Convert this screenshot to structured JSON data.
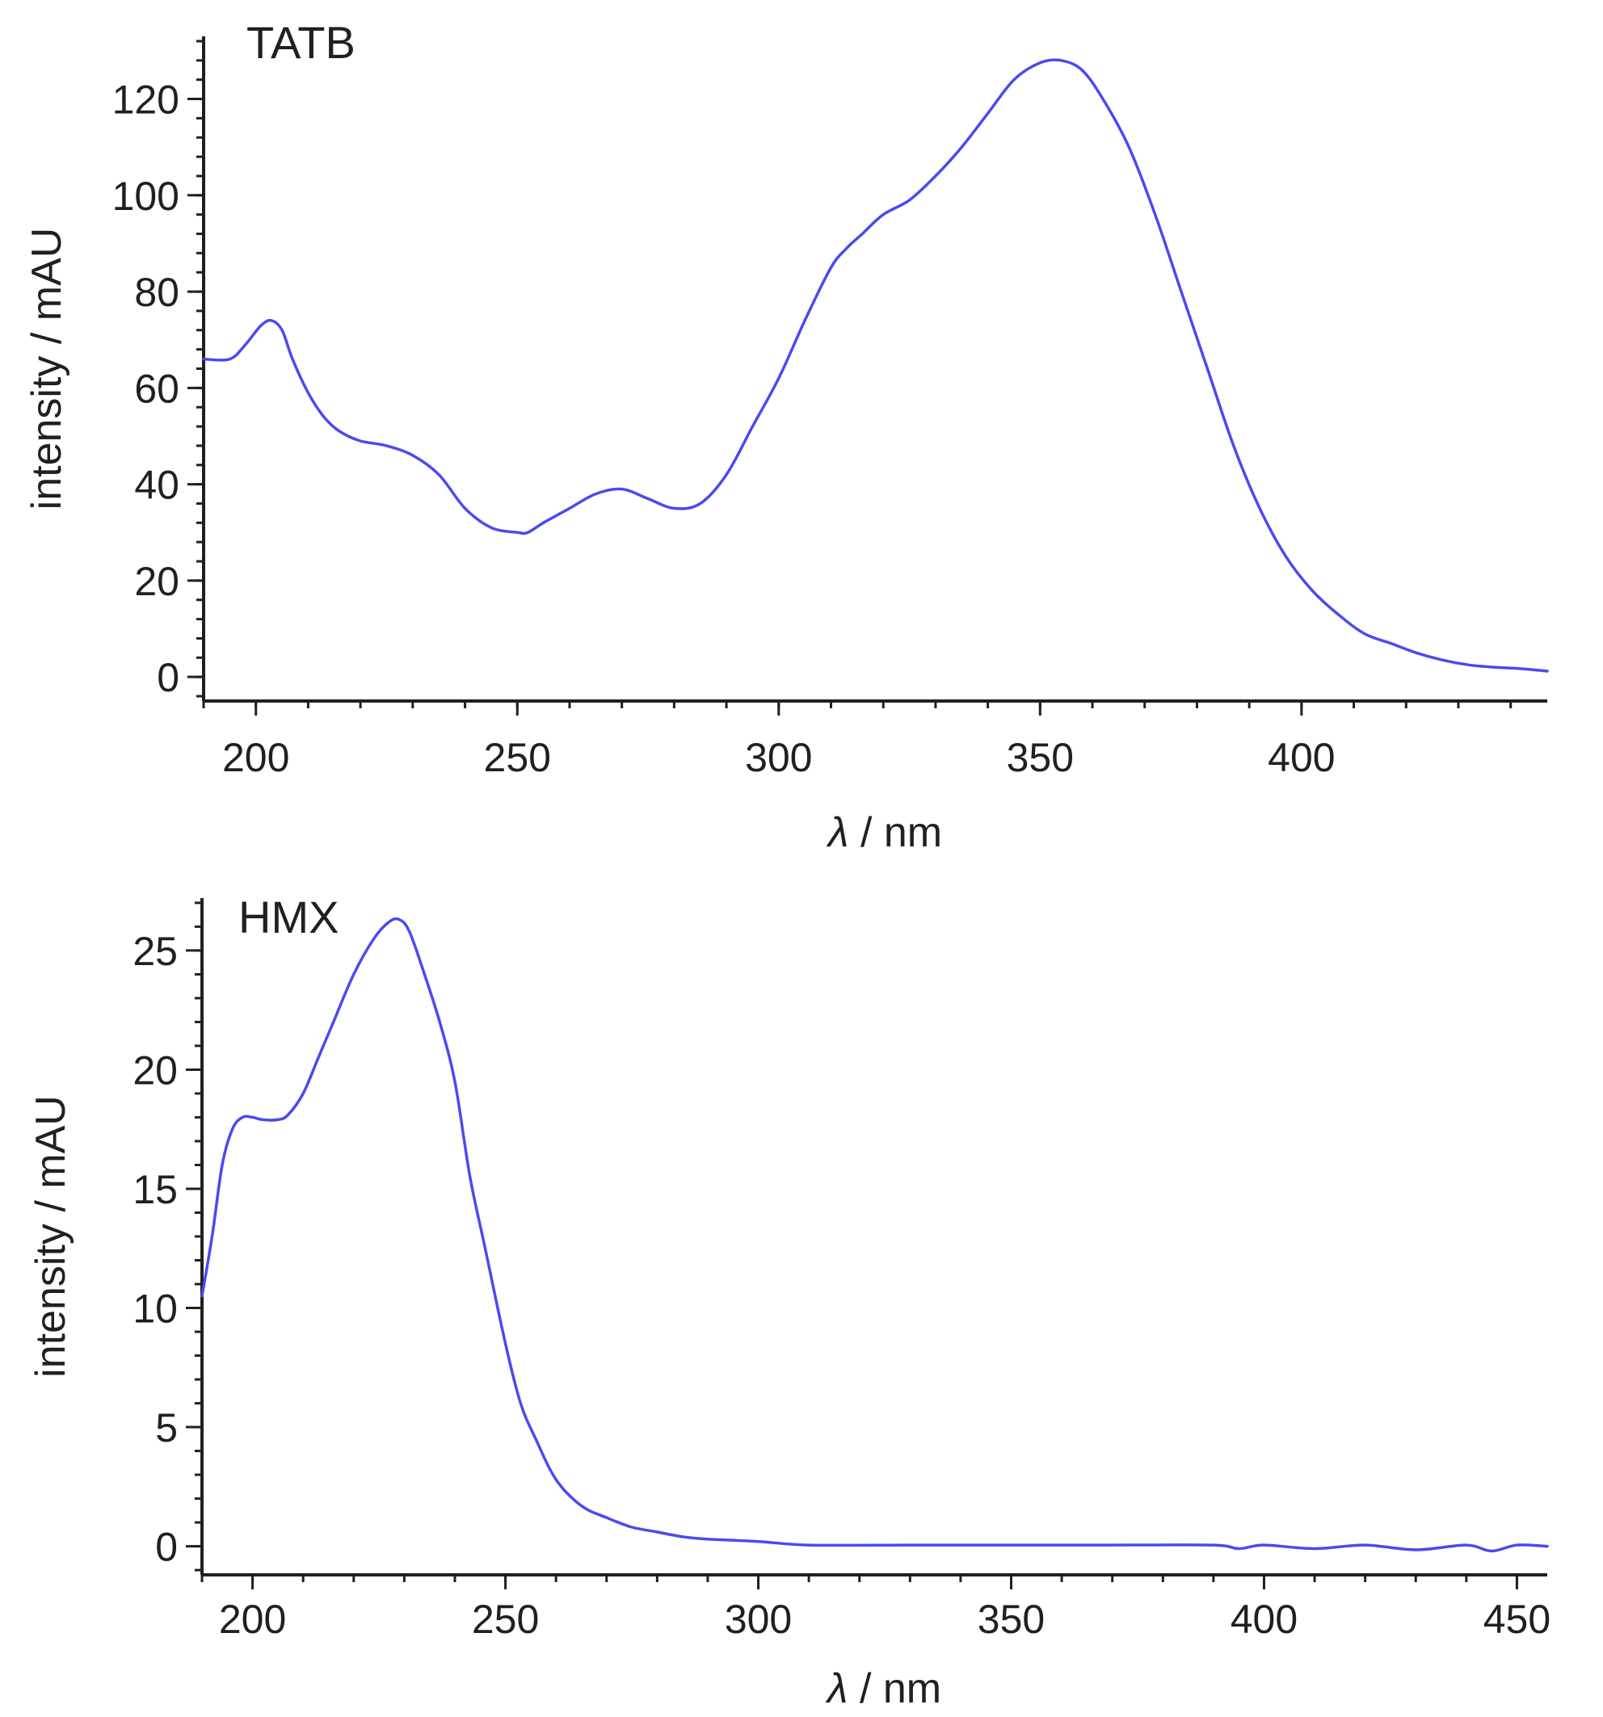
{
  "colors": {
    "series": "#4a4af0",
    "axis": "#231f20"
  },
  "chart_data": [
    {
      "type": "line",
      "title": "TATB",
      "xlabel_symbol": "λ",
      "xlabel_unit": " / nm",
      "ylabel": "intensity / mAU",
      "xlim": [
        190,
        447
      ],
      "ylim": [
        -5,
        133
      ],
      "x_ticks": [
        200,
        250,
        300,
        350,
        400
      ],
      "y_ticks": [
        0,
        20,
        40,
        60,
        80,
        100,
        120
      ],
      "x_minor_step": 10,
      "y_minor_step": 4,
      "grid": false,
      "series": [
        {
          "x": [
            190,
            195,
            198,
            201,
            203,
            205,
            207,
            210,
            213,
            216,
            220,
            225,
            230,
            235,
            240,
            245,
            250,
            252,
            255,
            260,
            265,
            270,
            275,
            280,
            285,
            290,
            295,
            300,
            305,
            310,
            313,
            316,
            320,
            325,
            330,
            335,
            340,
            345,
            350,
            354,
            358,
            362,
            367,
            372,
            377,
            382,
            387,
            392,
            397,
            402,
            407,
            412,
            417,
            422,
            427,
            432,
            437,
            442,
            447
          ],
          "y": [
            66,
            66,
            69,
            73,
            74,
            72,
            66,
            59,
            54,
            51,
            49,
            48,
            46,
            42,
            35,
            31,
            30,
            30,
            32,
            35,
            38,
            39,
            37,
            35,
            36,
            42,
            52,
            62,
            74,
            85,
            89,
            92,
            96,
            99,
            104,
            110,
            117,
            124,
            127.5,
            128,
            126,
            120,
            110,
            96,
            80,
            64,
            48,
            35,
            25,
            18,
            13,
            9,
            7,
            5,
            3.5,
            2.5,
            2,
            1.7,
            1.2
          ]
        }
      ]
    },
    {
      "type": "line",
      "title": "HMX",
      "xlabel_symbol": "λ",
      "xlabel_unit": " / nm",
      "ylabel": "intensity / mAU",
      "xlim": [
        190,
        456
      ],
      "ylim": [
        -1.2,
        27.2
      ],
      "x_ticks": [
        200,
        250,
        300,
        350,
        400,
        450
      ],
      "y_ticks": [
        0,
        5,
        10,
        15,
        20,
        25
      ],
      "x_minor_step": 10,
      "y_minor_step": 1,
      "grid": false,
      "series": [
        {
          "x": [
            190,
            192,
            194,
            196,
            198,
            200,
            202,
            205,
            207,
            210,
            213,
            216,
            220,
            224,
            227,
            229,
            231,
            234,
            237,
            240,
            243,
            246,
            250,
            253,
            256,
            260,
            265,
            270,
            275,
            280,
            285,
            290,
            300,
            310,
            330,
            350,
            370,
            390,
            395,
            400,
            410,
            420,
            430,
            440,
            445,
            450,
            456
          ],
          "y": [
            10.5,
            13,
            16,
            17.5,
            18,
            18,
            17.9,
            17.9,
            18.1,
            19,
            20.5,
            22,
            24,
            25.5,
            26.2,
            26.3,
            25.8,
            24,
            22,
            19.5,
            15.5,
            12.5,
            8.5,
            6,
            4.5,
            2.8,
            1.7,
            1.2,
            0.8,
            0.6,
            0.4,
            0.3,
            0.2,
            0.05,
            0.05,
            0.05,
            0.05,
            0.05,
            -0.1,
            0.05,
            -0.1,
            0.05,
            -0.15,
            0.05,
            -0.2,
            0.05,
            0
          ]
        }
      ]
    }
  ]
}
